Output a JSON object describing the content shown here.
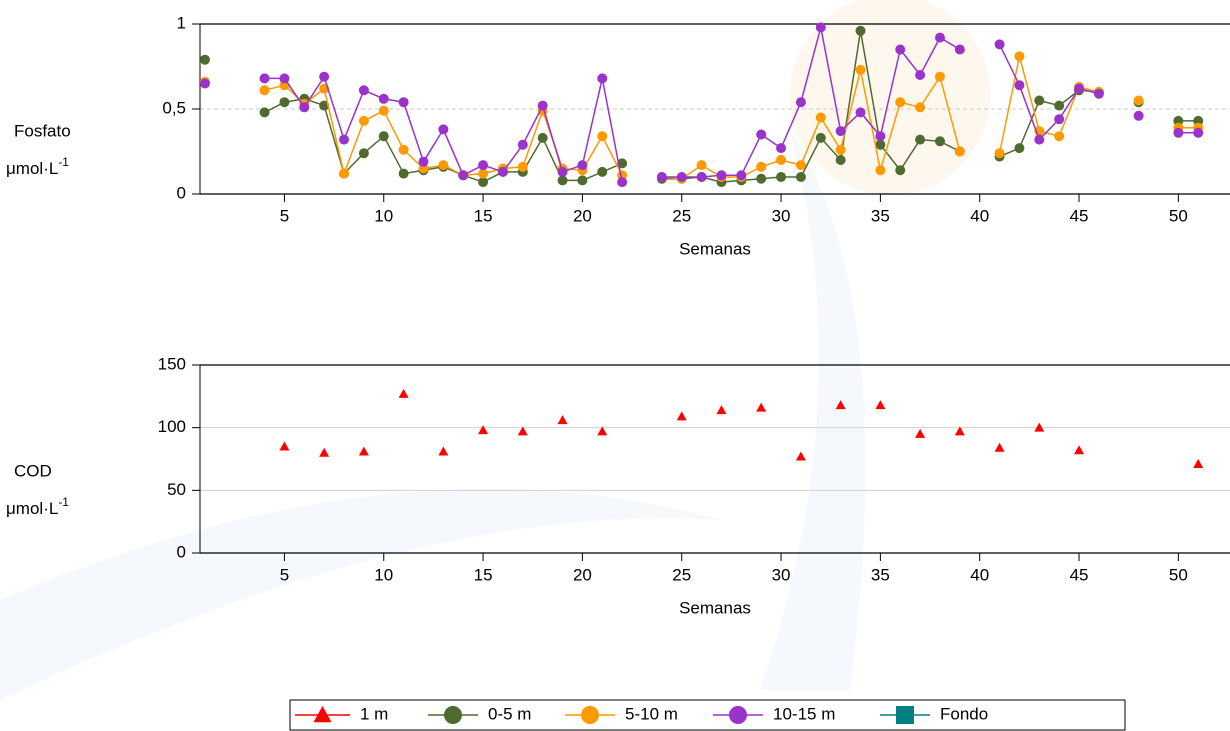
{
  "chart_data": [
    {
      "type": "line",
      "ylabel": {
        "text": "Fosfato",
        "unit": "μmol·L",
        "unit_exp": "-1"
      },
      "xlabel": "Semanas",
      "x": [
        1,
        2,
        3,
        4,
        5,
        6,
        7,
        8,
        9,
        10,
        11,
        12,
        13,
        14,
        15,
        16,
        17,
        18,
        19,
        20,
        21,
        22,
        23,
        24,
        25,
        26,
        27,
        28,
        29,
        30,
        31,
        32,
        33,
        34,
        35,
        36,
        37,
        38,
        39,
        40,
        41,
        42,
        43,
        44,
        45,
        46,
        47,
        48,
        49,
        50,
        51
      ],
      "series": [
        {
          "name": "0-5 m",
          "color": "#4f6b2f",
          "values": [
            0.79,
            null,
            null,
            0.48,
            0.54,
            0.56,
            0.52,
            0.12,
            0.24,
            0.34,
            0.12,
            0.14,
            0.16,
            0.11,
            0.07,
            0.13,
            0.13,
            0.33,
            0.08,
            0.08,
            0.13,
            0.18,
            null,
            0.09,
            0.09,
            0.1,
            0.07,
            0.08,
            0.09,
            0.1,
            0.1,
            0.33,
            0.2,
            0.96,
            0.29,
            0.14,
            0.32,
            0.31,
            0.25,
            null,
            0.22,
            0.27,
            0.55,
            0.52,
            0.61,
            0.6,
            null,
            0.54,
            null,
            0.43,
            0.43
          ]
        },
        {
          "name": "5-10 m",
          "color": "#ff9900",
          "values": [
            0.66,
            null,
            null,
            0.61,
            0.64,
            0.53,
            0.62,
            0.12,
            0.43,
            0.49,
            0.26,
            0.15,
            0.17,
            0.11,
            0.12,
            0.15,
            0.16,
            0.49,
            0.15,
            0.14,
            0.34,
            0.11,
            null,
            0.1,
            0.09,
            0.17,
            0.1,
            0.1,
            0.16,
            0.2,
            0.17,
            0.45,
            0.26,
            0.73,
            0.14,
            0.54,
            0.51,
            0.69,
            0.25,
            null,
            0.24,
            0.81,
            0.37,
            0.34,
            0.63,
            0.6,
            null,
            0.55,
            null,
            0.39,
            0.39
          ]
        },
        {
          "name": "10-15 m",
          "color": "#9933cc",
          "values": [
            0.65,
            null,
            null,
            0.68,
            0.68,
            0.51,
            0.69,
            0.32,
            0.61,
            0.56,
            0.54,
            0.19,
            0.38,
            0.11,
            0.17,
            0.13,
            0.29,
            0.52,
            0.13,
            0.17,
            0.68,
            0.07,
            null,
            0.1,
            0.1,
            0.1,
            0.11,
            0.11,
            0.35,
            0.27,
            0.54,
            0.98,
            0.37,
            0.48,
            0.34,
            0.85,
            0.7,
            0.92,
            0.85,
            null,
            0.88,
            0.64,
            0.32,
            0.44,
            0.62,
            0.59,
            null,
            0.46,
            null,
            0.36,
            0.36
          ]
        }
      ],
      "xlim": [
        0.75,
        52.6
      ],
      "xticks": [
        5,
        10,
        15,
        20,
        25,
        30,
        35,
        40,
        45,
        50
      ],
      "ylim": [
        0,
        1
      ],
      "yticks": [
        0,
        {
          "value": 0.5,
          "label": "0,5"
        },
        1
      ],
      "grid": true,
      "grid_style": "dashed",
      "marker": "circle"
    },
    {
      "type": "scatter",
      "ylabel": {
        "text": "COD",
        "unit": "μmol·L",
        "unit_exp": "-1"
      },
      "xlabel": "Semanas",
      "x": [
        5,
        7,
        9,
        11,
        13,
        15,
        17,
        19,
        21,
        25,
        27,
        29,
        31,
        33,
        35,
        37,
        39,
        41,
        43,
        45,
        51
      ],
      "series": [
        {
          "name": "1 m",
          "color": "#ff0000",
          "values": [
            85,
            80,
            81,
            127,
            81,
            98,
            97,
            106,
            97,
            109,
            114,
            116,
            77,
            118,
            118,
            95,
            97,
            84,
            100,
            82,
            71
          ]
        }
      ],
      "xlim": [
        0.75,
        52.6
      ],
      "xticks": [
        5,
        10,
        15,
        20,
        25,
        30,
        35,
        40,
        45,
        50
      ],
      "ylim": [
        0,
        150
      ],
      "yticks": [
        0,
        50,
        100,
        150
      ],
      "grid": true,
      "grid_style": "solid",
      "marker": "triangle"
    }
  ],
  "legend": [
    {
      "name": "1 m",
      "color": "#ff0000",
      "marker": "triangle"
    },
    {
      "name": "0-5 m",
      "color": "#4f6b2f",
      "marker": "circle"
    },
    {
      "name": "5-10 m",
      "color": "#ff9900",
      "marker": "circle"
    },
    {
      "name": "10-15 m",
      "color": "#9933cc",
      "marker": "circle"
    },
    {
      "name": "Fondo",
      "color": "#008080",
      "marker": "square"
    }
  ]
}
